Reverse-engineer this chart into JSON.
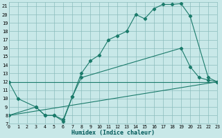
{
  "xlabel": "Humidex (Indice chaleur)",
  "bg_color": "#c8e8e8",
  "grid_color": "#8bbcbc",
  "line_color": "#1a7a6a",
  "xlim": [
    0,
    23
  ],
  "ylim": [
    7,
    21.5
  ],
  "xticks": [
    0,
    1,
    2,
    3,
    4,
    5,
    6,
    7,
    8,
    9,
    10,
    11,
    12,
    13,
    14,
    15,
    16,
    17,
    18,
    19,
    20,
    21,
    22,
    23
  ],
  "yticks": [
    7,
    8,
    9,
    10,
    11,
    12,
    13,
    14,
    15,
    16,
    17,
    18,
    19,
    20,
    21
  ],
  "series1_x": [
    0,
    1,
    3,
    4,
    5,
    6,
    7,
    8,
    9,
    10,
    11,
    12,
    13,
    14,
    15,
    16,
    17,
    18,
    19,
    20,
    22,
    23
  ],
  "series1_y": [
    12,
    10,
    9,
    8,
    8,
    7.3,
    10.2,
    13,
    14.5,
    15.2,
    17,
    17.5,
    18,
    20,
    19.5,
    20.7,
    21.2,
    21.2,
    21.3,
    19.8,
    12.5,
    12
  ],
  "series2_x": [
    0,
    23
  ],
  "series2_y": [
    12,
    12
  ],
  "series3_x": [
    0,
    3,
    4,
    5,
    6,
    7,
    8,
    19,
    20,
    21,
    22,
    23
  ],
  "series3_y": [
    8,
    9,
    8,
    8,
    7.5,
    10.2,
    12.5,
    16,
    13.8,
    12.5,
    12.2,
    12
  ],
  "series4_x": [
    0,
    23
  ],
  "series4_y": [
    8,
    12
  ]
}
